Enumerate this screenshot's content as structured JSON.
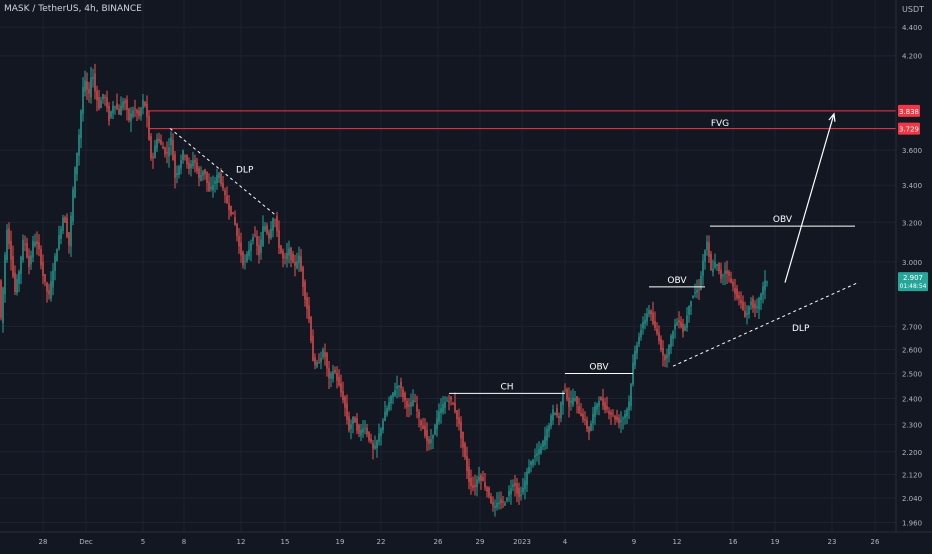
{
  "header": {
    "title": "MASK / TetherUS, 4h, BINANCE",
    "currency": "USDT"
  },
  "colors": {
    "background": "#131722",
    "grid": "#1e2230",
    "up": "#26a69a",
    "down": "#ef5350",
    "zone_line": "#f23645",
    "annotation": "#ffffff",
    "axis_text": "#b2b5be"
  },
  "chart_data": {
    "type": "candlestick",
    "y_axis": {
      "scale": "log",
      "range": [
        1.93,
        4.6
      ],
      "tick_labels": [
        "4.400",
        "4.200",
        "3.600",
        "3.400",
        "3.200",
        "3.000",
        "2.700",
        "2.600",
        "2.500",
        "2.400",
        "2.300",
        "2.200",
        "2.120",
        "2.040",
        "1.960"
      ]
    },
    "x_axis": {
      "tick_labels": [
        "28",
        "Dec",
        "5",
        "8",
        "12",
        "15",
        "19",
        "22",
        "26",
        "29",
        "2023",
        "4",
        "9",
        "12",
        "16",
        "19",
        "23",
        "26"
      ]
    },
    "price_path": [
      [
        0,
        2.62
      ],
      [
        3,
        2.78
      ],
      [
        8,
        3.18
      ],
      [
        12,
        3.03
      ],
      [
        16,
        2.85
      ],
      [
        20,
        2.95
      ],
      [
        25,
        3.13
      ],
      [
        30,
        2.97
      ],
      [
        35,
        3.12
      ],
      [
        40,
        3.06
      ],
      [
        45,
        2.91
      ],
      [
        50,
        2.83
      ],
      [
        55,
        2.99
      ],
      [
        60,
        3.12
      ],
      [
        65,
        3.25
      ],
      [
        70,
        3.07
      ],
      [
        75,
        3.43
      ],
      [
        80,
        3.68
      ],
      [
        85,
        4.05
      ],
      [
        90,
        3.92
      ],
      [
        93,
        4.12
      ],
      [
        96,
        3.97
      ],
      [
        100,
        3.86
      ],
      [
        105,
        3.96
      ],
      [
        110,
        3.78
      ],
      [
        115,
        3.9
      ],
      [
        120,
        3.82
      ],
      [
        125,
        3.92
      ],
      [
        130,
        3.78
      ],
      [
        135,
        3.86
      ],
      [
        140,
        3.8
      ],
      [
        145,
        3.92
      ],
      [
        148,
        3.8
      ],
      [
        150,
        3.66
      ],
      [
        153,
        3.52
      ],
      [
        158,
        3.68
      ],
      [
        163,
        3.62
      ],
      [
        168,
        3.57
      ],
      [
        172,
        3.68
      ],
      [
        176,
        3.44
      ],
      [
        180,
        3.51
      ],
      [
        185,
        3.6
      ],
      [
        190,
        3.48
      ],
      [
        195,
        3.56
      ],
      [
        200,
        3.43
      ],
      [
        205,
        3.5
      ],
      [
        210,
        3.36
      ],
      [
        215,
        3.41
      ],
      [
        220,
        3.47
      ],
      [
        225,
        3.35
      ],
      [
        230,
        3.28
      ],
      [
        235,
        3.22
      ],
      [
        240,
        3.08
      ],
      [
        245,
        2.98
      ],
      [
        250,
        3.06
      ],
      [
        255,
        3.15
      ],
      [
        260,
        3.03
      ],
      [
        265,
        3.2
      ],
      [
        270,
        3.12
      ],
      [
        275,
        3.25
      ],
      [
        280,
        3.08
      ],
      [
        285,
        3.0
      ],
      [
        290,
        3.06
      ],
      [
        295,
        2.97
      ],
      [
        300,
        3.03
      ],
      [
        305,
        2.86
      ],
      [
        310,
        2.74
      ],
      [
        315,
        2.52
      ],
      [
        320,
        2.55
      ],
      [
        325,
        2.6
      ],
      [
        330,
        2.47
      ],
      [
        335,
        2.52
      ],
      [
        340,
        2.45
      ],
      [
        345,
        2.39
      ],
      [
        350,
        2.28
      ],
      [
        355,
        2.33
      ],
      [
        360,
        2.26
      ],
      [
        365,
        2.3
      ],
      [
        370,
        2.25
      ],
      [
        375,
        2.2
      ],
      [
        380,
        2.26
      ],
      [
        385,
        2.33
      ],
      [
        390,
        2.38
      ],
      [
        395,
        2.43
      ],
      [
        400,
        2.46
      ],
      [
        405,
        2.4
      ],
      [
        410,
        2.36
      ],
      [
        415,
        2.4
      ],
      [
        420,
        2.32
      ],
      [
        425,
        2.28
      ],
      [
        430,
        2.22
      ],
      [
        435,
        2.28
      ],
      [
        440,
        2.34
      ],
      [
        445,
        2.38
      ],
      [
        450,
        2.4
      ],
      [
        455,
        2.37
      ],
      [
        460,
        2.3
      ],
      [
        465,
        2.2
      ],
      [
        470,
        2.1
      ],
      [
        475,
        2.07
      ],
      [
        480,
        2.12
      ],
      [
        485,
        2.09
      ],
      [
        490,
        2.05
      ],
      [
        495,
        2.0
      ],
      [
        500,
        2.03
      ],
      [
        505,
        2.02
      ],
      [
        510,
        2.06
      ],
      [
        515,
        2.1
      ],
      [
        520,
        2.04
      ],
      [
        525,
        2.08
      ],
      [
        530,
        2.15
      ],
      [
        535,
        2.18
      ],
      [
        540,
        2.2
      ],
      [
        545,
        2.24
      ],
      [
        550,
        2.3
      ],
      [
        555,
        2.36
      ],
      [
        560,
        2.32
      ],
      [
        565,
        2.46
      ],
      [
        570,
        2.37
      ],
      [
        575,
        2.41
      ],
      [
        580,
        2.35
      ],
      [
        585,
        2.32
      ],
      [
        590,
        2.27
      ],
      [
        595,
        2.35
      ],
      [
        600,
        2.4
      ],
      [
        605,
        2.37
      ],
      [
        610,
        2.35
      ],
      [
        615,
        2.33
      ],
      [
        620,
        2.31
      ],
      [
        625,
        2.33
      ],
      [
        630,
        2.38
      ],
      [
        635,
        2.57
      ],
      [
        640,
        2.66
      ],
      [
        645,
        2.72
      ],
      [
        650,
        2.78
      ],
      [
        655,
        2.7
      ],
      [
        660,
        2.65
      ],
      [
        665,
        2.55
      ],
      [
        670,
        2.61
      ],
      [
        675,
        2.7
      ],
      [
        680,
        2.73
      ],
      [
        685,
        2.67
      ],
      [
        690,
        2.8
      ],
      [
        695,
        2.85
      ],
      [
        700,
        2.87
      ],
      [
        705,
        3.03
      ],
      [
        708,
        3.1
      ],
      [
        712,
        2.95
      ],
      [
        717,
        3.0
      ],
      [
        722,
        2.92
      ],
      [
        727,
        2.97
      ],
      [
        732,
        2.9
      ],
      [
        737,
        2.85
      ],
      [
        742,
        2.8
      ],
      [
        747,
        2.74
      ],
      [
        752,
        2.82
      ],
      [
        757,
        2.76
      ],
      [
        762,
        2.85
      ],
      [
        767,
        2.91
      ]
    ],
    "annotations": [
      {
        "type": "zone_line",
        "price": 3.838,
        "label": "3.838",
        "x_start": 148
      },
      {
        "type": "zone_line",
        "price": 3.729,
        "label": "3.729",
        "x_start": 148
      },
      {
        "type": "text",
        "text": "FVG",
        "price": 3.77,
        "x": 720
      },
      {
        "type": "trendline",
        "style": "dashed",
        "points": [
          [
            170,
            3.73
          ],
          [
            275,
            3.24
          ]
        ],
        "label": "DLP",
        "label_x": 236,
        "label_price": 3.47
      },
      {
        "type": "hline",
        "label": "CH",
        "price": 2.42,
        "x_start": 449,
        "x_end": 565
      },
      {
        "type": "hline",
        "label": "OBV",
        "price": 2.5,
        "x_start": 565,
        "x_end": 633
      },
      {
        "type": "hline",
        "label": "OBV",
        "price": 2.88,
        "x_start": 649,
        "x_end": 705
      },
      {
        "type": "hline",
        "label": "OBV",
        "price": 3.18,
        "x_start": 710,
        "x_end": 855
      },
      {
        "type": "trendline",
        "style": "dashed",
        "points": [
          [
            673,
            2.53
          ],
          [
            858,
            2.9
          ]
        ],
        "label": "DLP",
        "label_x": 792,
        "label_price": 2.68
      },
      {
        "type": "arrow",
        "points": [
          [
            785,
            2.9
          ],
          [
            834,
            3.82
          ]
        ]
      }
    ],
    "current_price": {
      "value": "2.907",
      "countdown": "01:48:54"
    }
  }
}
